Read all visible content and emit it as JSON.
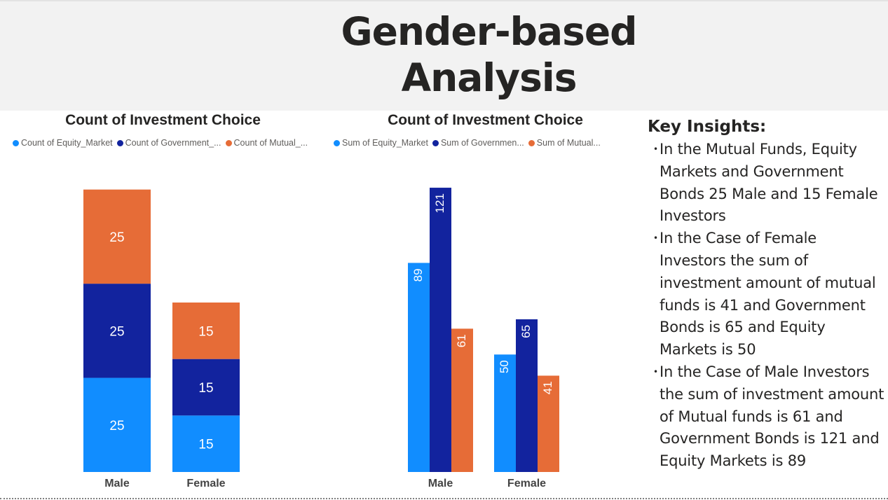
{
  "page": {
    "title": "Gender-based\nAnalysis"
  },
  "colors": {
    "equity": "#118dff",
    "government": "#12239e",
    "mutual": "#e66c37",
    "header_bg": "#f2f2f2"
  },
  "chart_data": [
    {
      "type": "bar",
      "stacked": true,
      "title": "Count of Investment Choice",
      "categories": [
        "Male",
        "Female"
      ],
      "series": [
        {
          "name": "Count of Equity_Market",
          "legend_label": "Count of Equity_Market",
          "color": "#118dff",
          "values": [
            25,
            15
          ]
        },
        {
          "name": "Count of Government_Bonds",
          "legend_label": "Count of Government_...",
          "color": "#12239e",
          "values": [
            25,
            15
          ]
        },
        {
          "name": "Count of Mutual_Funds",
          "legend_label": "Count of Mutual_...",
          "color": "#e66c37",
          "values": [
            25,
            15
          ]
        }
      ],
      "ylim": [
        0,
        90
      ],
      "legend_position": "top-left",
      "grid": false
    },
    {
      "type": "bar",
      "stacked": false,
      "title": "Count of Investment Choice",
      "categories": [
        "Male",
        "Female"
      ],
      "series": [
        {
          "name": "Sum of Equity_Market",
          "legend_label": "Sum of Equity_Market",
          "color": "#118dff",
          "values": [
            89,
            50
          ]
        },
        {
          "name": "Sum of Government_Bonds",
          "legend_label": "Sum of Governmen...",
          "color": "#12239e",
          "values": [
            121,
            65
          ]
        },
        {
          "name": "Sum of Mutual_Funds",
          "legend_label": "Sum of Mutual...",
          "color": "#e66c37",
          "values": [
            61,
            41
          ]
        }
      ],
      "ylim": [
        0,
        124
      ],
      "legend_position": "top-left",
      "grid": false
    }
  ],
  "insights": {
    "heading": "Key Insights:",
    "items": [
      "In the Mutual Funds, Equity Markets and Government Bonds 25 Male and 15 Female Investors",
      "In the Case of Female Investors the sum of investment amount of mutual funds is 41 and Government Bonds is 65 and Equity Markets is 50",
      "In the Case of Male Investors the sum of investment amount of Mutual funds is 61 and Government Bonds is 121 and Equity Markets is 89"
    ]
  }
}
